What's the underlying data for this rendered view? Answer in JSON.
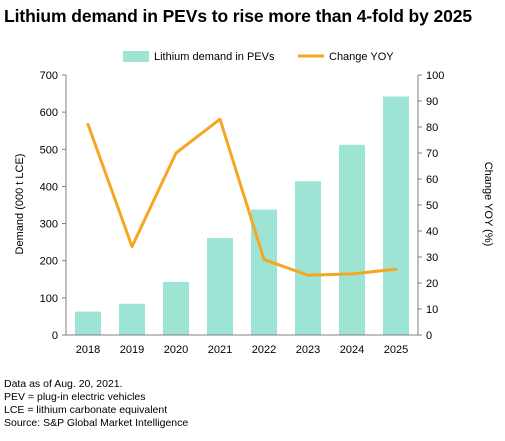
{
  "title": "Lithium demand in PEVs to rise more than 4-fold by 2025",
  "colors": {
    "bar": "#9ee4d4",
    "line": "#f6a623",
    "axis": "#808080"
  },
  "chart_data": {
    "type": "bar+line",
    "categories": [
      "2018",
      "2019",
      "2020",
      "2021",
      "2022",
      "2023",
      "2024",
      "2025"
    ],
    "series": [
      {
        "name": "Lithium demand in PEVs",
        "type": "bar",
        "axis": "left",
        "values": [
          63,
          84,
          143,
          261,
          338,
          414,
          512,
          642
        ]
      },
      {
        "name": "Change YOY",
        "type": "line",
        "axis": "right",
        "values": [
          81,
          34,
          70,
          83,
          29,
          23,
          23.5,
          25.3
        ]
      }
    ],
    "ylabel_left": "Demand (000 t LCE)",
    "ylabel_right": "Change YOY (%)",
    "ylim_left": [
      0,
      700
    ],
    "ylim_right": [
      0,
      100
    ],
    "yticks_left": [
      "0",
      "100",
      "200",
      "300",
      "400",
      "500",
      "600",
      "700"
    ],
    "yticks_right": [
      "0",
      "10",
      "20",
      "30",
      "40",
      "50",
      "60",
      "70",
      "80",
      "90",
      "100"
    ],
    "legend_position": "top",
    "grid": false
  },
  "notes": [
    "Data as of Aug. 20, 2021.",
    "PEV = plug-in electric vehicles",
    "LCE = lithium carbonate equivalent",
    "Source: S&P Global Market Intelligence"
  ]
}
